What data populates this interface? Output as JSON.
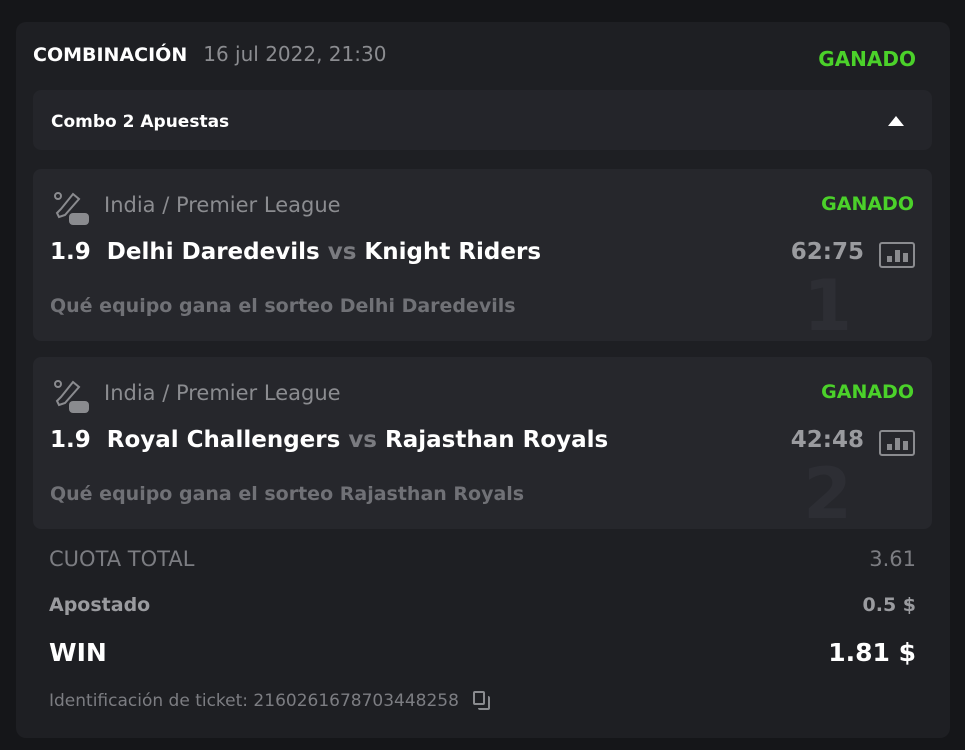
{
  "header": {
    "title": "COMBINACIÓN",
    "date": "16 jul 2022, 21:30",
    "status": "GANADO"
  },
  "combo": {
    "label": "Combo 2 Apuestas"
  },
  "events": [
    {
      "index": "1",
      "league": "India / Premier League",
      "status": "GANADO",
      "odds": "1.9",
      "home": "Delhi Daredevils",
      "vs": "vs",
      "away": "Knight Riders",
      "score": "62:75",
      "pick": "Qué equipo gana el sorteo Delhi Daredevils"
    },
    {
      "index": "2",
      "league": "India / Premier League",
      "status": "GANADO",
      "odds": "1.9",
      "home": "Royal Challengers",
      "vs": "vs",
      "away": "Rajasthan Royals",
      "score": "42:48",
      "pick": "Qué equipo gana el sorteo Rajasthan Royals"
    }
  ],
  "summary": {
    "total_label": "CUOTA TOTAL",
    "total_value": "3.61",
    "stake_label": "Apostado",
    "stake_value": "0.5 $",
    "win_label": "WIN",
    "win_value": "1.81 $"
  },
  "ticket": {
    "label": "Identificación de ticket: 2160261678703448258"
  },
  "colors": {
    "won": "#4bd12a",
    "card": "#1e1f23",
    "event_card": "#26272c"
  }
}
